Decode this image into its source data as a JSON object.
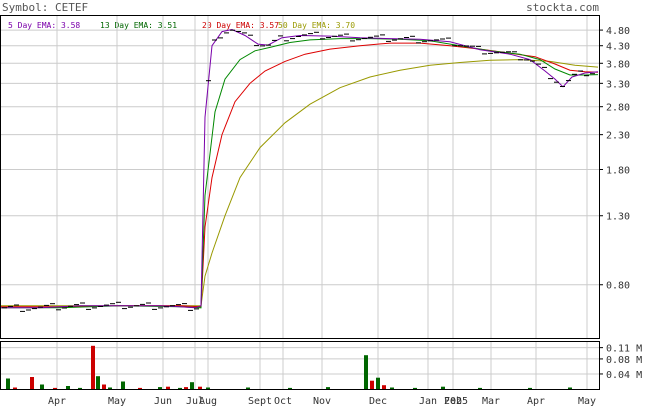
{
  "header": {
    "symbol_label": "Symbol: CETEF",
    "site": "stockta.com",
    "legend": [
      {
        "text": "5 Day EMA: 3.58",
        "color": "#7a00aa"
      },
      {
        "text": "13 Day EMA: 3.51",
        "color": "#006600"
      },
      {
        "text": "20 Day EMA: 3.57",
        "color": "#cc0000"
      },
      {
        "text": "50 Day EMA: 3.70",
        "color": "#999900"
      }
    ]
  },
  "colors": {
    "ema5": "#7a00aa",
    "ema13": "#008800",
    "ema20": "#dd0000",
    "ema50": "#999900",
    "up_volume": "#006600",
    "down_volume": "#cc0000",
    "grid": "#cccccc"
  },
  "chart_data": [
    {
      "type": "line",
      "title": "",
      "log_scale": true,
      "grid": true,
      "y_ticks": [
        4.8,
        4.3,
        3.8,
        3.3,
        2.8,
        2.3,
        1.8,
        1.3,
        0.8
      ],
      "y_tick_labels": [
        "4.80",
        "4.30",
        "3.80",
        "3.30",
        "2.80",
        "2.30",
        "1.80",
        "1.30",
        "0.80"
      ],
      "ylim": [
        0.55,
        5.3
      ],
      "x_tick_labels": [
        "Apr",
        "May",
        "Jun",
        "Jul",
        "Aug",
        "Sept",
        "Oct",
        "Nov",
        "Dec",
        "Jan",
        "Feb",
        "2025",
        "Mar",
        "Apr",
        "May"
      ],
      "series": [
        {
          "name": "5 Day EMA",
          "points": [
            [
              0,
              0.68
            ],
            [
              40,
              0.68
            ],
            [
              80,
              0.69
            ],
            [
              120,
              0.69
            ],
            [
              160,
              0.69
            ],
            [
              180,
              0.685
            ],
            [
              195,
              0.68
            ],
            [
              201,
              0.69
            ],
            [
              205,
              2.6
            ],
            [
              212,
              4.3
            ],
            [
              222,
              4.75
            ],
            [
              232,
              4.82
            ],
            [
              245,
              4.62
            ],
            [
              258,
              4.35
            ],
            [
              268,
              4.32
            ],
            [
              282,
              4.55
            ],
            [
              300,
              4.62
            ],
            [
              330,
              4.6
            ],
            [
              360,
              4.55
            ],
            [
              390,
              4.52
            ],
            [
              420,
              4.5
            ],
            [
              450,
              4.42
            ],
            [
              480,
              4.18
            ],
            [
              510,
              4.05
            ],
            [
              530,
              3.9
            ],
            [
              545,
              3.6
            ],
            [
              555,
              3.4
            ],
            [
              563,
              3.22
            ],
            [
              572,
              3.45
            ],
            [
              585,
              3.55
            ],
            [
              598,
              3.58
            ]
          ]
        },
        {
          "name": "13 Day EMA",
          "points": [
            [
              0,
              0.68
            ],
            [
              60,
              0.68
            ],
            [
              120,
              0.69
            ],
            [
              180,
              0.685
            ],
            [
              201,
              0.68
            ],
            [
              205,
              1.5
            ],
            [
              215,
              2.7
            ],
            [
              225,
              3.4
            ],
            [
              240,
              3.9
            ],
            [
              255,
              4.15
            ],
            [
              270,
              4.25
            ],
            [
              290,
              4.4
            ],
            [
              310,
              4.48
            ],
            [
              340,
              4.52
            ],
            [
              370,
              4.52
            ],
            [
              400,
              4.5
            ],
            [
              430,
              4.45
            ],
            [
              460,
              4.3
            ],
            [
              490,
              4.15
            ],
            [
              520,
              4.05
            ],
            [
              540,
              3.9
            ],
            [
              555,
              3.65
            ],
            [
              570,
              3.5
            ],
            [
              585,
              3.5
            ],
            [
              598,
              3.51
            ]
          ]
        },
        {
          "name": "20 Day EMA",
          "points": [
            [
              0,
              0.685
            ],
            [
              60,
              0.685
            ],
            [
              120,
              0.69
            ],
            [
              180,
              0.69
            ],
            [
              201,
              0.685
            ],
            [
              205,
              1.2
            ],
            [
              212,
              1.7
            ],
            [
              222,
              2.3
            ],
            [
              235,
              2.9
            ],
            [
              250,
              3.3
            ],
            [
              265,
              3.6
            ],
            [
              285,
              3.85
            ],
            [
              305,
              4.05
            ],
            [
              330,
              4.2
            ],
            [
              360,
              4.3
            ],
            [
              390,
              4.38
            ],
            [
              420,
              4.38
            ],
            [
              450,
              4.3
            ],
            [
              480,
              4.2
            ],
            [
              510,
              4.08
            ],
            [
              535,
              3.98
            ],
            [
              555,
              3.78
            ],
            [
              570,
              3.62
            ],
            [
              585,
              3.58
            ],
            [
              598,
              3.57
            ]
          ]
        },
        {
          "name": "50 Day EMA",
          "points": [
            [
              0,
              0.69
            ],
            [
              80,
              0.69
            ],
            [
              160,
              0.69
            ],
            [
              201,
              0.69
            ],
            [
              205,
              0.85
            ],
            [
              212,
              1.0
            ],
            [
              225,
              1.3
            ],
            [
              240,
              1.7
            ],
            [
              260,
              2.1
            ],
            [
              285,
              2.5
            ],
            [
              310,
              2.85
            ],
            [
              340,
              3.2
            ],
            [
              370,
              3.45
            ],
            [
              400,
              3.62
            ],
            [
              430,
              3.75
            ],
            [
              460,
              3.82
            ],
            [
              490,
              3.88
            ],
            [
              520,
              3.9
            ],
            [
              550,
              3.85
            ],
            [
              575,
              3.75
            ],
            [
              598,
              3.7
            ]
          ]
        }
      ]
    },
    {
      "type": "bar",
      "title": "",
      "y_ticks": [
        0.11,
        0.08,
        0.04
      ],
      "y_tick_labels": [
        "0.11 M",
        "0.08 M",
        "0.04 M"
      ],
      "unit": "M",
      "ylim": [
        0,
        0.125
      ],
      "bars": [
        {
          "x": 8,
          "value": 0.028,
          "dir": "up"
        },
        {
          "x": 15,
          "value": 0.004,
          "dir": "down"
        },
        {
          "x": 32,
          "value": 0.032,
          "dir": "down"
        },
        {
          "x": 42,
          "value": 0.012,
          "dir": "up"
        },
        {
          "x": 55,
          "value": 0.003,
          "dir": "down"
        },
        {
          "x": 68,
          "value": 0.008,
          "dir": "up"
        },
        {
          "x": 80,
          "value": 0.003,
          "dir": "up"
        },
        {
          "x": 93,
          "value": 0.115,
          "dir": "down"
        },
        {
          "x": 98,
          "value": 0.034,
          "dir": "up"
        },
        {
          "x": 104,
          "value": 0.012,
          "dir": "down"
        },
        {
          "x": 110,
          "value": 0.004,
          "dir": "up"
        },
        {
          "x": 123,
          "value": 0.02,
          "dir": "up"
        },
        {
          "x": 140,
          "value": 0.003,
          "dir": "down"
        },
        {
          "x": 160,
          "value": 0.005,
          "dir": "up"
        },
        {
          "x": 168,
          "value": 0.006,
          "dir": "down"
        },
        {
          "x": 180,
          "value": 0.003,
          "dir": "up"
        },
        {
          "x": 186,
          "value": 0.005,
          "dir": "down"
        },
        {
          "x": 192,
          "value": 0.018,
          "dir": "up"
        },
        {
          "x": 200,
          "value": 0.006,
          "dir": "down"
        },
        {
          "x": 208,
          "value": 0.004,
          "dir": "up"
        },
        {
          "x": 248,
          "value": 0.004,
          "dir": "up"
        },
        {
          "x": 290,
          "value": 0.003,
          "dir": "up"
        },
        {
          "x": 328,
          "value": 0.005,
          "dir": "up"
        },
        {
          "x": 366,
          "value": 0.09,
          "dir": "up"
        },
        {
          "x": 372,
          "value": 0.022,
          "dir": "down"
        },
        {
          "x": 378,
          "value": 0.03,
          "dir": "up"
        },
        {
          "x": 384,
          "value": 0.01,
          "dir": "down"
        },
        {
          "x": 392,
          "value": 0.004,
          "dir": "up"
        },
        {
          "x": 415,
          "value": 0.003,
          "dir": "up"
        },
        {
          "x": 443,
          "value": 0.006,
          "dir": "up"
        },
        {
          "x": 480,
          "value": 0.003,
          "dir": "up"
        },
        {
          "x": 530,
          "value": 0.003,
          "dir": "up"
        },
        {
          "x": 570,
          "value": 0.004,
          "dir": "up"
        }
      ]
    }
  ]
}
